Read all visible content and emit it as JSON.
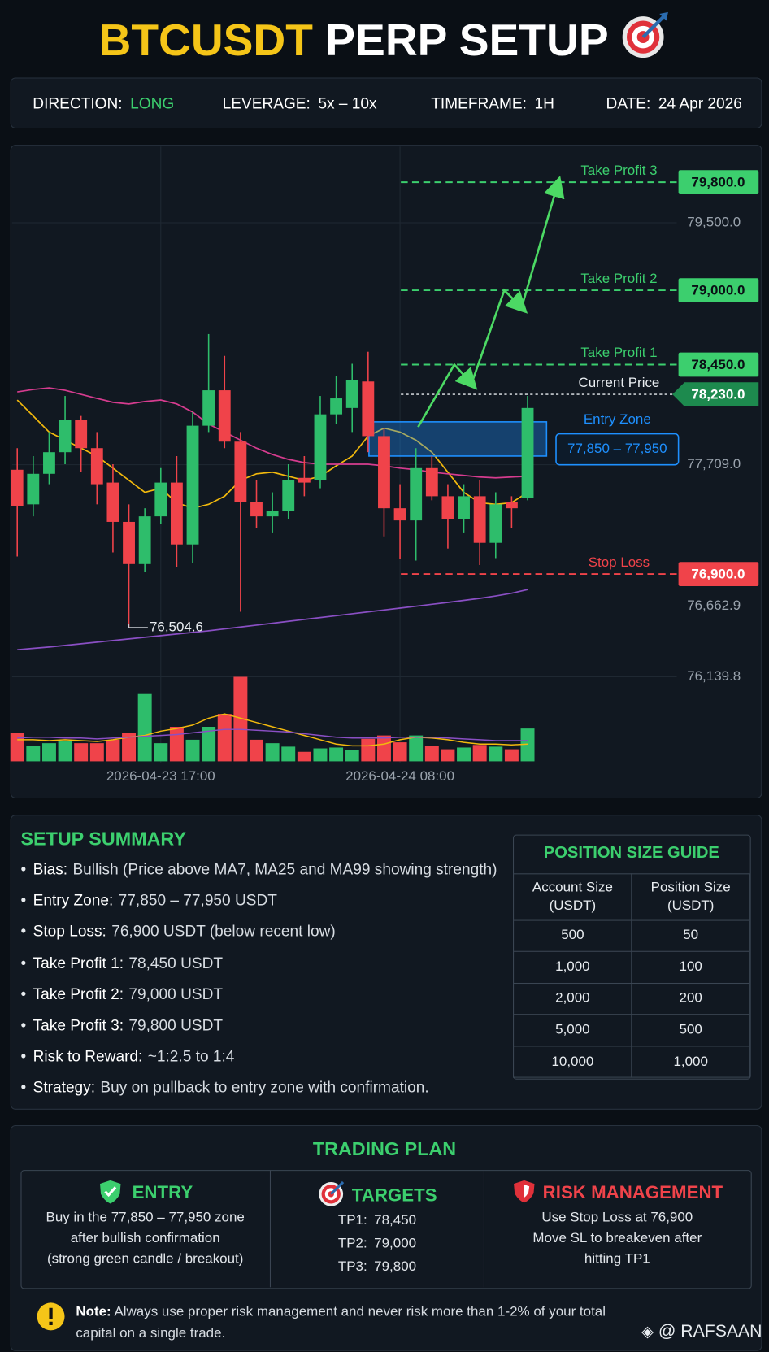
{
  "header": {
    "title_highlight": "BTCUSDT",
    "title_rest": "PERP SETUP"
  },
  "info": [
    {
      "label": "DIRECTION:",
      "value": "LONG"
    },
    {
      "label": "LEVERAGE:",
      "value": "5x – 10x"
    },
    {
      "label": "TIMEFRAME:",
      "value": "1H"
    },
    {
      "label": "DATE:",
      "value": "24 Apr 2026"
    }
  ],
  "chart_data": {
    "type": "candlestick",
    "categories": [
      null,
      null,
      null,
      null,
      null,
      null,
      null,
      null,
      null,
      "2026-04-23 17:00",
      null,
      null,
      null,
      null,
      null,
      null,
      null,
      null,
      null,
      null,
      null,
      null,
      null,
      null,
      "2026-04-24 08:00",
      null,
      null,
      null,
      null,
      null,
      null,
      null,
      null
    ],
    "open": [
      77672,
      77416,
      77642,
      77802,
      78040,
      77832,
      77577,
      77286,
      76974,
      77327,
      77577,
      77119,
      77998,
      78260,
      77880,
      77434,
      77327,
      77369,
      77612,
      77594,
      78082,
      78129,
      78325,
      77921,
      77387,
      77297,
      77684,
      77476,
      77309,
      77476,
      77131,
      77434,
      77464
    ],
    "high": [
      77832,
      77773,
      77951,
      78218,
      78070,
      77951,
      77713,
      77416,
      77387,
      77684,
      77773,
      78099,
      78676,
      78515,
      77951,
      77594,
      77505,
      77713,
      77773,
      78218,
      78367,
      78456,
      78545,
      77980,
      77565,
      77832,
      77773,
      77565,
      77565,
      77594,
      77505,
      77476,
      78218
    ],
    "low": [
      77030,
      77327,
      77565,
      77713,
      77654,
      77416,
      77060,
      76504.6,
      76918,
      77268,
      76951,
      76984,
      77951,
      77832,
      76621,
      77238,
      77208,
      77309,
      77476,
      77535,
      78010,
      77951,
      77802,
      77179,
      77012,
      77000,
      77446,
      77089,
      77208,
      76967,
      77018,
      77238,
      77446
    ],
    "close": [
      77404,
      77642,
      77802,
      78040,
      77832,
      77565,
      77286,
      76974,
      77327,
      77577,
      77119,
      77998,
      78260,
      77880,
      77434,
      77327,
      77369,
      77594,
      77577,
      78082,
      78200,
      78337,
      77921,
      77387,
      77297,
      77684,
      77476,
      77309,
      77476,
      77131,
      77416,
      77387,
      78129
    ],
    "up_color": "#2ebd6b",
    "down_color": "#f0434a",
    "series": [
      {
        "color": "#f2b90d",
        "values": [
          78188,
          78070,
          77951,
          77891,
          77832,
          77773,
          77684,
          77594,
          77505,
          77535,
          77428,
          77387,
          77416,
          77476,
          77594,
          77642,
          77654,
          77624,
          77594,
          77624,
          77701,
          77773,
          77921,
          77980,
          77951,
          77891,
          77802,
          77654,
          77505,
          77428,
          77416,
          77428,
          77505
        ]
      },
      {
        "color": "#d63c8f",
        "values": [
          78248,
          78266,
          78278,
          78260,
          78230,
          78200,
          78171,
          78159,
          78177,
          78188,
          78159,
          78099,
          78010,
          77951,
          77891,
          77832,
          77785,
          77749,
          77725,
          77713,
          77713,
          77713,
          77713,
          77701,
          77684,
          77672,
          77654,
          77642,
          77630,
          77618,
          77612,
          77618,
          77624
        ]
      },
      {
        "color": "#8a4fc4",
        "values": [
          76340,
          76350,
          76360,
          76372,
          76384,
          76396,
          76408,
          76420,
          76432,
          76444,
          76456,
          76468,
          76480,
          76494,
          76508,
          76522,
          76536,
          76550,
          76564,
          76578,
          76592,
          76606,
          76620,
          76634,
          76648,
          76662,
          76676,
          76690,
          76705,
          76720,
          76738,
          76758,
          76785
        ]
      }
    ],
    "volume": [
      33,
      18,
      21,
      23,
      21,
      21,
      25,
      33,
      78,
      21,
      40,
      25,
      40,
      55,
      98,
      25,
      21,
      17,
      11,
      15,
      16,
      13,
      26,
      30,
      22,
      30,
      18,
      14,
      16,
      19,
      17,
      14,
      38
    ],
    "volume_series": [
      {
        "color": "#f2b90d",
        "values": [
          25,
          25,
          24,
          25,
          24,
          23,
          25,
          28,
          30,
          35,
          38,
          42,
          50,
          55,
          50,
          45,
          40,
          35,
          30,
          25,
          20,
          18,
          18,
          20,
          25,
          28,
          27,
          25,
          22,
          20,
          20,
          19,
          20
        ]
      },
      {
        "color": "#8a4fc4",
        "values": [
          27,
          28,
          28,
          27,
          27,
          26,
          27,
          28,
          29,
          30,
          31,
          33,
          35,
          37,
          37,
          36,
          35,
          34,
          32,
          30,
          28,
          27,
          27,
          27,
          28,
          28,
          28,
          27,
          26,
          25,
          24,
          24,
          24
        ]
      }
    ],
    "ylim": [
      75980,
      80000
    ],
    "yticks": [
      {
        "value": 79500,
        "label": "79,500.0"
      },
      {
        "value": 77709,
        "label": "77,709.0"
      },
      {
        "value": 76662.9,
        "label": "76,662.9"
      },
      {
        "value": 76139.8,
        "label": "76,139.8"
      }
    ],
    "levels": [
      {
        "name": "Take Profit 3",
        "value": 79800,
        "label": "79,800.0",
        "color": "#3ccf6e"
      },
      {
        "name": "Take Profit 2",
        "value": 79000,
        "label": "79,000.0",
        "color": "#3ccf6e"
      },
      {
        "name": "Take Profit 1",
        "value": 78450,
        "label": "78,450.0",
        "color": "#3ccf6e"
      },
      {
        "name": "Current Price",
        "value": 78230,
        "label": "78,230.0",
        "color": "#e8ecf0"
      },
      {
        "name": "Stop Loss",
        "value": 76900,
        "label": "76,900.0",
        "color": "#f0434a"
      }
    ],
    "entry_zone": {
      "name": "Entry Zone",
      "values": [
        77850,
        77950
      ],
      "label": "77,850 – 77,950",
      "color": "#1e90ff"
    },
    "low_annotation": {
      "value": 76504.6,
      "label": "76,504.6"
    }
  },
  "summary": {
    "title": "SETUP SUMMARY",
    "items": [
      {
        "label": "Bias:",
        "text": "Bullish (Price above MA7, MA25 and MA99 showing strength)"
      },
      {
        "label": "Entry Zone:",
        "text": "77,850 – 77,950 USDT"
      },
      {
        "label": "Stop Loss:",
        "text": "76,900 USDT (below recent low)"
      },
      {
        "label": "Take Profit 1:",
        "text": "78,450 USDT"
      },
      {
        "label": "Take Profit 2:",
        "text": "79,000 USDT"
      },
      {
        "label": "Take Profit 3:",
        "text": "79,800 USDT"
      },
      {
        "label": "Risk to Reward:",
        "text": "~1:2.5 to 1:4"
      },
      {
        "label": "Strategy:",
        "text": "Buy on pullback to entry zone with confirmation."
      }
    ]
  },
  "position_guide": {
    "title": "POSITION SIZE GUIDE",
    "columns": [
      "Account Size (USDT)",
      "Position Size (USDT)"
    ],
    "rows": [
      [
        "500",
        "50"
      ],
      [
        "1,000",
        "100"
      ],
      [
        "2,000",
        "200"
      ],
      [
        "5,000",
        "500"
      ],
      [
        "10,000",
        "1,000"
      ]
    ]
  },
  "trading_plan": {
    "title": "TRADING PLAN",
    "entry": {
      "title": "ENTRY",
      "lines": [
        "Buy in the 77,850 – 77,950 zone",
        "after bullish confirmation",
        "(strong green candle / breakout)"
      ]
    },
    "targets": {
      "title": "TARGETS",
      "items": [
        {
          "label": "TP1:",
          "value": "78,450"
        },
        {
          "label": "TP2:",
          "value": "79,000"
        },
        {
          "label": "TP3:",
          "value": "79,800"
        }
      ]
    },
    "risk": {
      "title": "RISK MANAGEMENT",
      "lines": [
        "Use Stop Loss at 76,900",
        "Move SL to breakeven after",
        "hitting TP1"
      ]
    }
  },
  "note": {
    "label": "Note:",
    "text": "Always use proper risk management and never risk more than 1-2% of your total capital on a single trade."
  },
  "watermark": "@ RAFSAAN"
}
